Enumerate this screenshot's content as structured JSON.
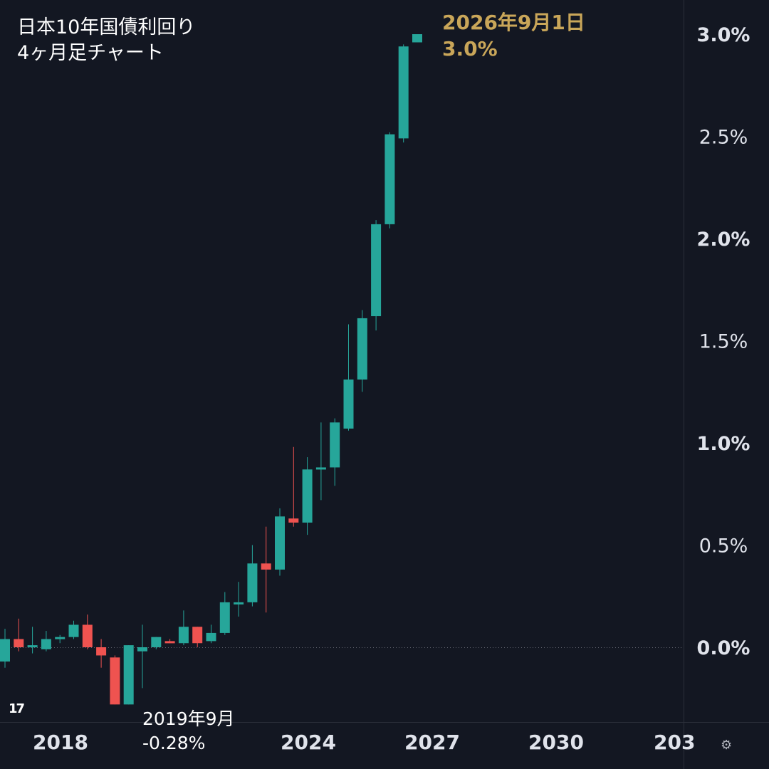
{
  "title": {
    "line1": "日本10年国債利回り",
    "line2": "4ヶ月足チャート"
  },
  "highlight": {
    "date": "2026年9月1日",
    "value": "3.0%"
  },
  "low_annotation": {
    "date": "2019年9月",
    "value": "-0.28%"
  },
  "icons": {
    "logo": "tradingview-logo-icon",
    "settings": "settings-gear-icon"
  },
  "colors": {
    "background": "#131722",
    "up": "#26a69a",
    "down": "#ef5350",
    "highlight": "#c9a659",
    "axis_text": "#e0e3eb"
  },
  "chart_data": {
    "type": "candlestick",
    "title": "日本10年国債利回り 4ヶ月足チャート",
    "interval": "4 months",
    "y_unit": "%",
    "ylim": [
      -0.35,
      3.1
    ],
    "y_ticks": [
      "3.0%",
      "2.5%",
      "2.0%",
      "1.5%",
      "1.0%",
      "0.5%",
      "0.0%"
    ],
    "x_ticks": [
      "2018",
      "2024",
      "2027",
      "2030",
      "203"
    ],
    "reference_line": 0.0,
    "candles": [
      {
        "o": -0.07,
        "h": 0.09,
        "l": -0.1,
        "c": 0.04
      },
      {
        "o": 0.04,
        "h": 0.14,
        "l": -0.02,
        "c": 0.0
      },
      {
        "o": 0.0,
        "h": 0.1,
        "l": -0.03,
        "c": 0.01
      },
      {
        "o": -0.01,
        "h": 0.08,
        "l": -0.02,
        "c": 0.04
      },
      {
        "o": 0.04,
        "h": 0.06,
        "l": 0.02,
        "c": 0.05
      },
      {
        "o": 0.05,
        "h": 0.13,
        "l": 0.04,
        "c": 0.11
      },
      {
        "o": 0.11,
        "h": 0.16,
        "l": -0.01,
        "c": 0.0
      },
      {
        "o": 0.0,
        "h": 0.04,
        "l": -0.1,
        "c": -0.04
      },
      {
        "o": -0.05,
        "h": -0.04,
        "l": -0.28,
        "c": -0.28
      },
      {
        "o": -0.28,
        "h": 0.01,
        "l": -0.28,
        "c": 0.01
      },
      {
        "o": -0.02,
        "h": 0.11,
        "l": -0.2,
        "c": -0.0
      },
      {
        "o": 0.0,
        "h": 0.05,
        "l": -0.01,
        "c": 0.05
      },
      {
        "o": 0.03,
        "h": 0.04,
        "l": 0.02,
        "c": 0.02
      },
      {
        "o": 0.02,
        "h": 0.18,
        "l": 0.01,
        "c": 0.1
      },
      {
        "o": 0.1,
        "h": 0.1,
        "l": 0.0,
        "c": 0.02
      },
      {
        "o": 0.03,
        "h": 0.11,
        "l": 0.02,
        "c": 0.07
      },
      {
        "o": 0.07,
        "h": 0.27,
        "l": 0.06,
        "c": 0.22
      },
      {
        "o": 0.22,
        "h": 0.32,
        "l": 0.15,
        "c": 0.22
      },
      {
        "o": 0.22,
        "h": 0.5,
        "l": 0.2,
        "c": 0.41
      },
      {
        "o": 0.41,
        "h": 0.59,
        "l": 0.17,
        "c": 0.38
      },
      {
        "o": 0.38,
        "h": 0.68,
        "l": 0.35,
        "c": 0.64
      },
      {
        "o": 0.63,
        "h": 0.98,
        "l": 0.59,
        "c": 0.61
      },
      {
        "o": 0.61,
        "h": 0.93,
        "l": 0.55,
        "c": 0.87
      },
      {
        "o": 0.87,
        "h": 1.1,
        "l": 0.72,
        "c": 0.88
      },
      {
        "o": 0.88,
        "h": 1.12,
        "l": 0.79,
        "c": 1.1
      },
      {
        "o": 1.07,
        "h": 1.58,
        "l": 1.06,
        "c": 1.31
      },
      {
        "o": 1.31,
        "h": 1.65,
        "l": 1.25,
        "c": 1.61
      },
      {
        "o": 1.62,
        "h": 2.09,
        "l": 1.55,
        "c": 2.07
      },
      {
        "o": 2.07,
        "h": 2.52,
        "l": 2.05,
        "c": 2.51
      },
      {
        "o": 2.49,
        "h": 2.95,
        "l": 2.47,
        "c": 2.94
      },
      {
        "o": 2.96,
        "h": 3.0,
        "l": 2.96,
        "c": 3.0
      }
    ]
  }
}
